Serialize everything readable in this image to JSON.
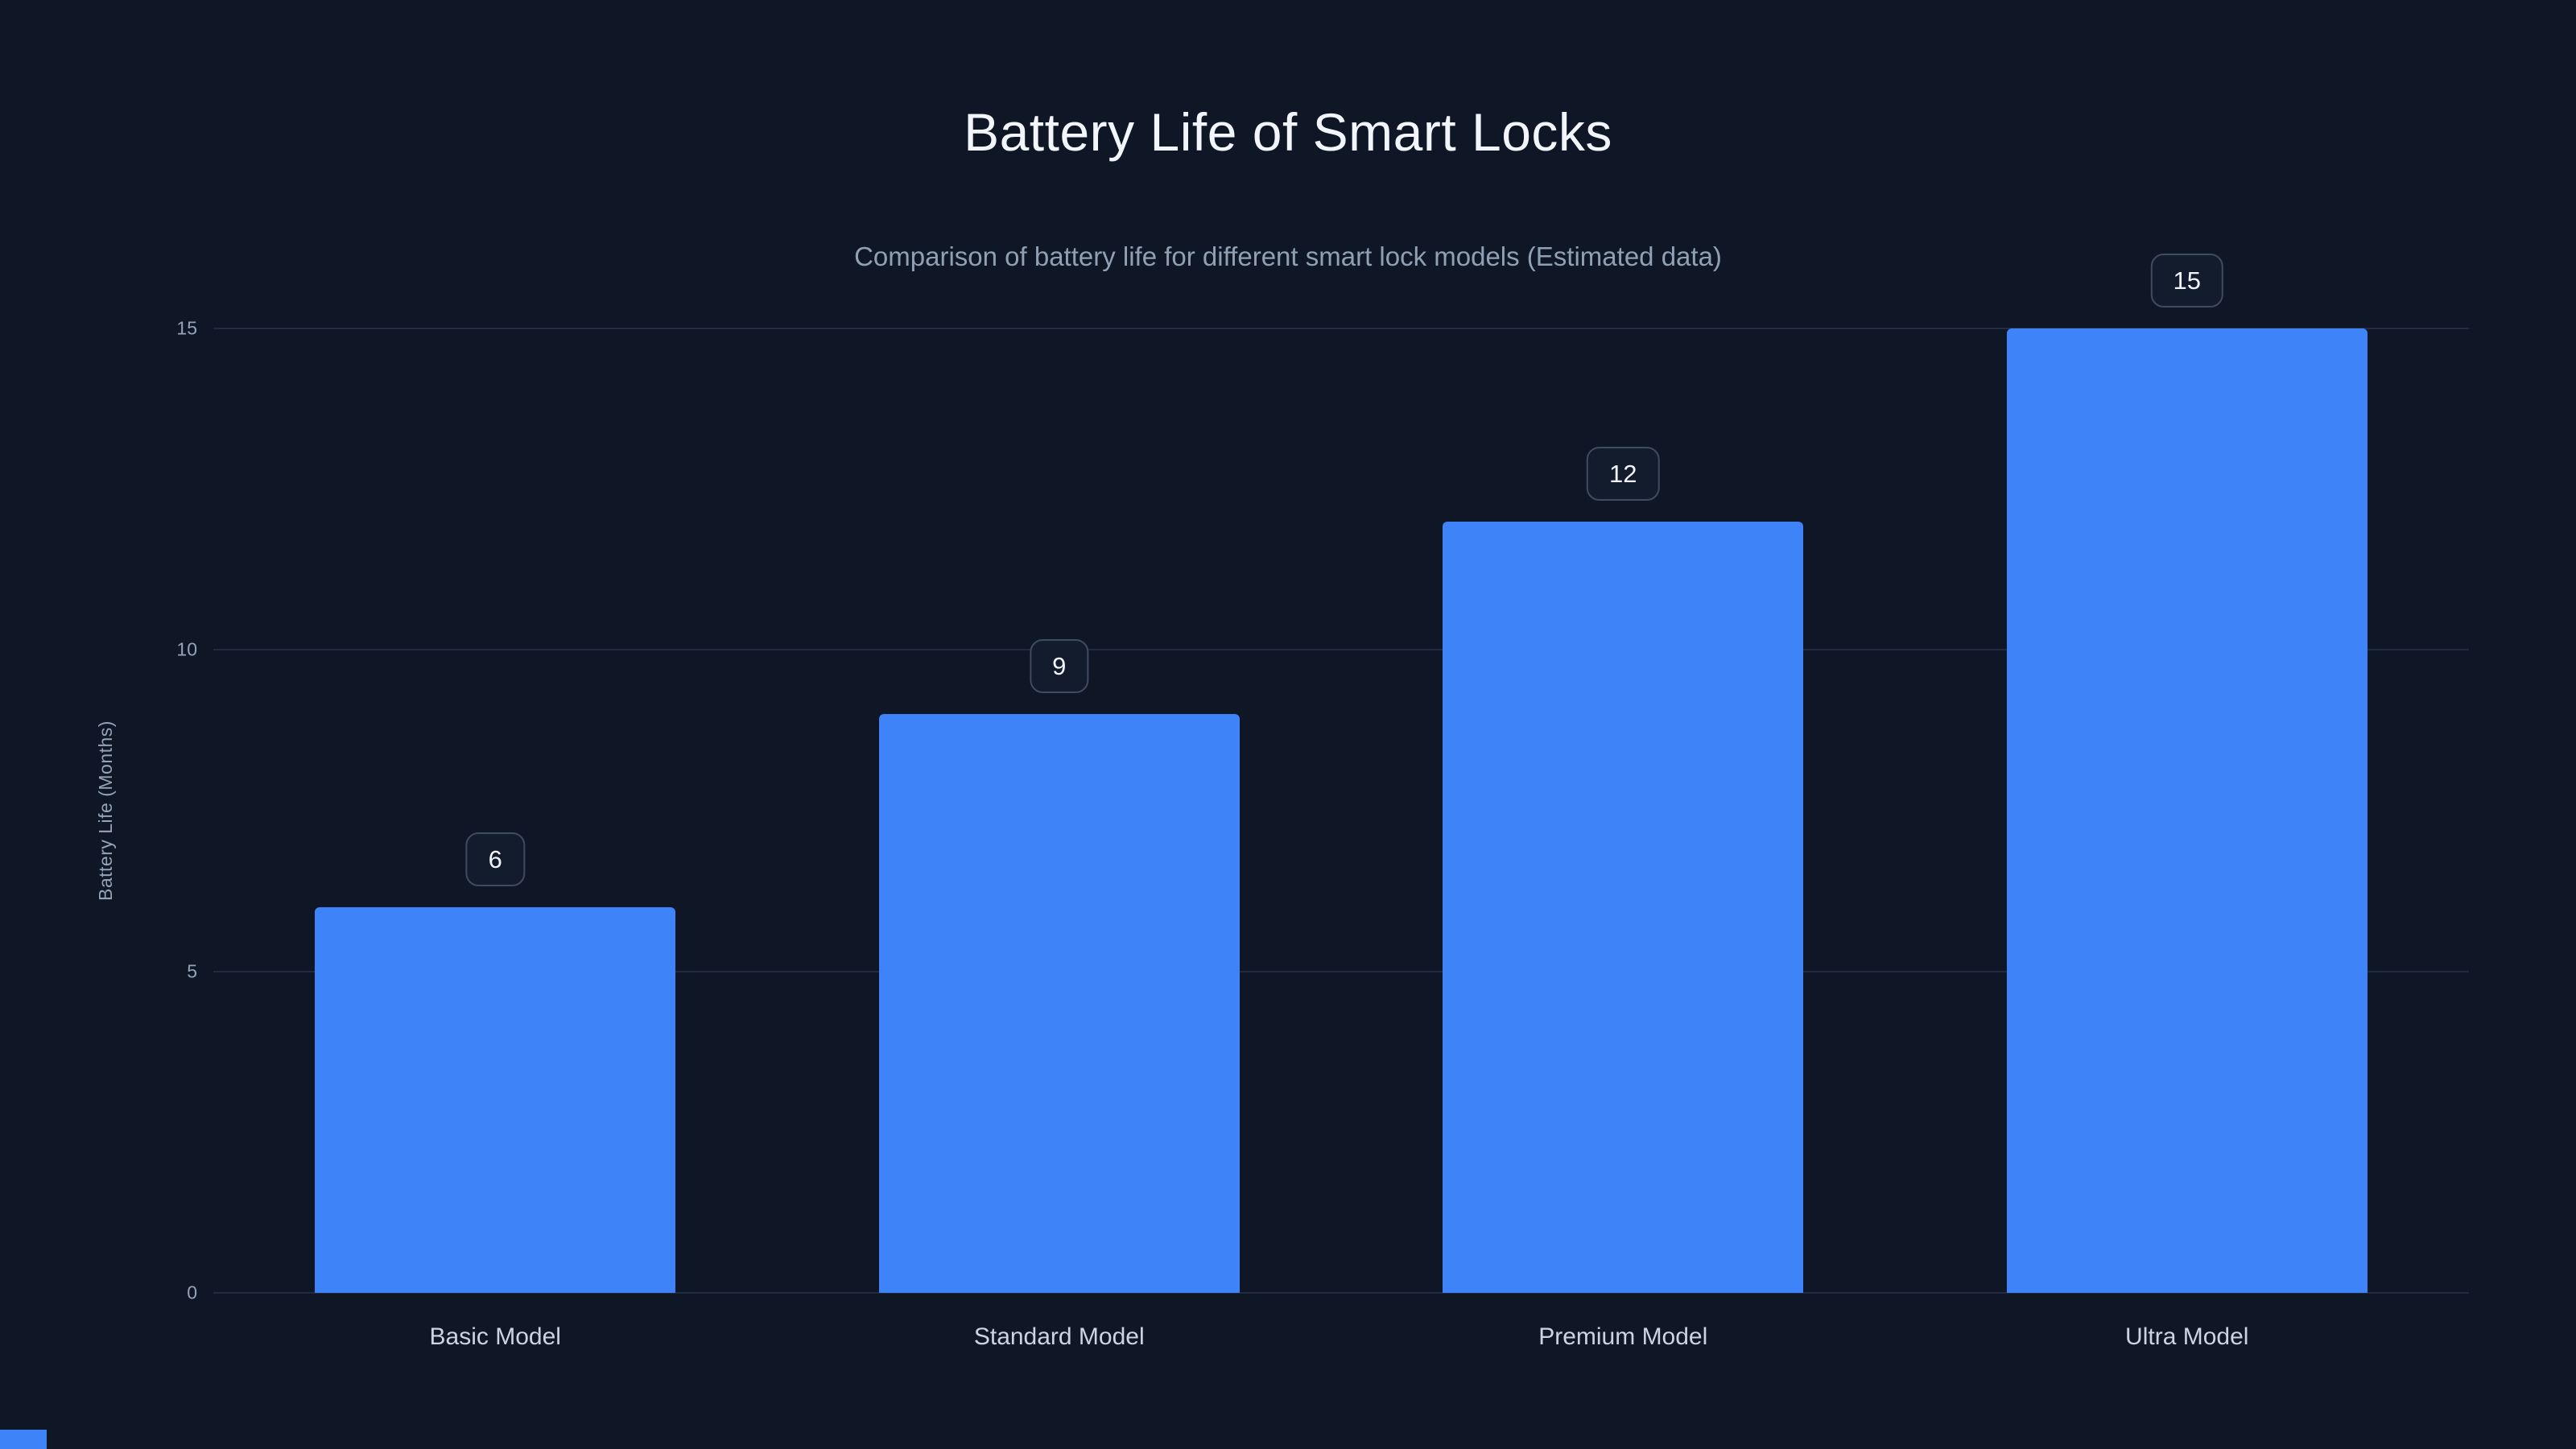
{
  "colors": {
    "background": "#0f1726",
    "bar": "#3e83f8",
    "grid": "#202c40",
    "title_text": "#f2f6fc",
    "subtitle_text": "#90a0b4",
    "axis_text": "#94a3b8",
    "category_text": "#cbd5e1",
    "pill_border": "#3f4b61",
    "pill_bg": "#121c2c",
    "pill_text": "#f1f5f9"
  },
  "chart_data": {
    "type": "bar",
    "title": "Battery Life of Smart Locks",
    "subtitle": "Comparison of battery life for different smart lock models (Estimated data)",
    "categories": [
      "Basic Model",
      "Standard Model",
      "Premium Model",
      "Ultra Model"
    ],
    "values": [
      6,
      9,
      12,
      15
    ],
    "value_labels": [
      "6",
      "9",
      "12",
      "15"
    ],
    "xlabel": "",
    "ylabel": "Battery Life (Months)",
    "ylim": [
      0,
      15
    ],
    "yticks": [
      0,
      5,
      10,
      15
    ],
    "grid": true,
    "legend": false,
    "bar_color": "#3e83f8"
  }
}
